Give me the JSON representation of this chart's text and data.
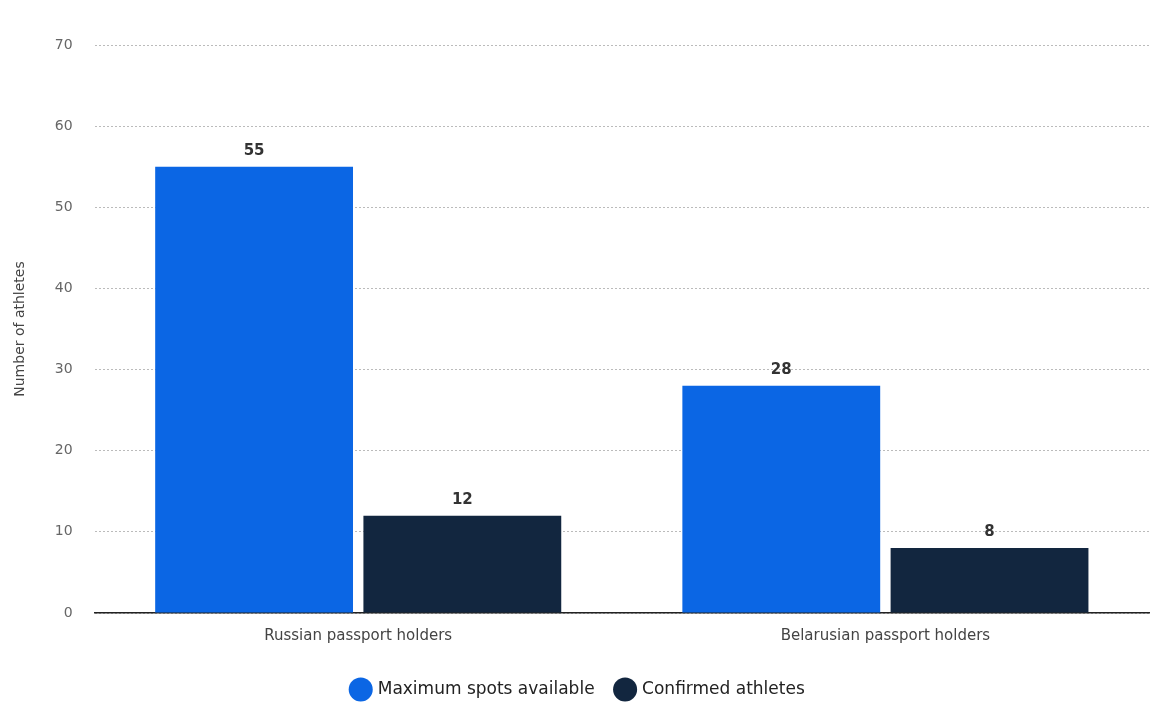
{
  "chart_data": {
    "type": "bar",
    "ylabel": "Number of athletes",
    "categories": [
      "Russian passport holders",
      "Belarusian passport holders"
    ],
    "series": [
      {
        "name": "Maximum spots available",
        "color": "#0b66e4",
        "values": [
          55,
          28
        ]
      },
      {
        "name": "Confirmed athletes",
        "color": "#12263f",
        "values": [
          12,
          8
        ]
      }
    ],
    "ylim": [
      0,
      70
    ],
    "yticks": [
      0,
      10,
      20,
      30,
      40,
      50,
      60,
      70
    ],
    "grid": "y",
    "legend": "bottom",
    "data_labels": true
  }
}
